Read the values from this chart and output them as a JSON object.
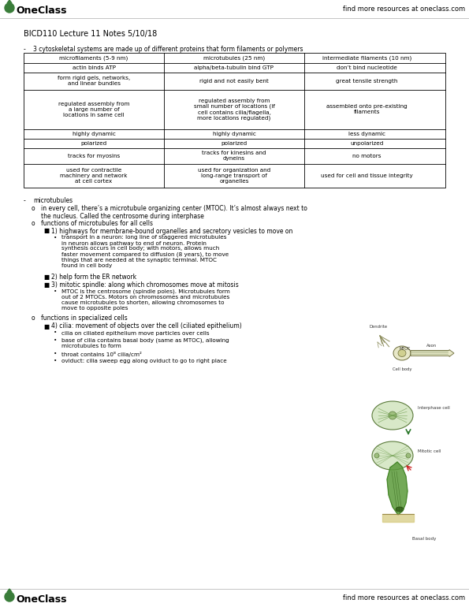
{
  "title": "BICD110 Lecture 11 Notes 5/10/18",
  "header_right": "find more resources at oneclass.com",
  "footer_right": "find more resources at oneclass.com",
  "bullet_intro": "3 cytoskeletal systems are made up of different proteins that form filaments or polymers",
  "table_headers": [
    "microfilaments (5-9 nm)",
    "microtubules (25 nm)",
    "intermediate filaments (10 nm)"
  ],
  "table_rows": [
    [
      "actin binds ATP",
      "alpha/beta-tubulin bind GTP",
      "don’t bind nucleotide"
    ],
    [
      "form rigid gels, networks,\nand linear bundles",
      "rigid and not easily bent",
      "great tensile strength"
    ],
    [
      "regulated assembly from\na large number of\nlocations in same cell",
      "regulated assembly from\nsmall number of locations (if\ncell contains cilia/flagella,\nmore locations regulated)",
      "assembled onto pre-existing\nfilaments"
    ],
    [
      "highly dynamic",
      "highly dynamic",
      "less dynamic"
    ],
    [
      "polarized",
      "polarized",
      "unpolarized"
    ],
    [
      "tracks for myosins",
      "tracks for kinesins and\ndyneins",
      "no motors"
    ],
    [
      "used for contractile\nmachinery and network\nat cell cortex",
      "used for organization and\nlong-range transport of\norganelles",
      "used for cell and tissue integrity"
    ]
  ],
  "bg_color": "#ffffff",
  "text_color": "#000000",
  "table_border_color": "#000000",
  "logo_color": "#3a7d3a",
  "header_font_size": 6.0,
  "title_font_size": 7.0,
  "body_font_size": 5.5,
  "table_font_size": 5.2,
  "oneclass_font_size": 9.0
}
